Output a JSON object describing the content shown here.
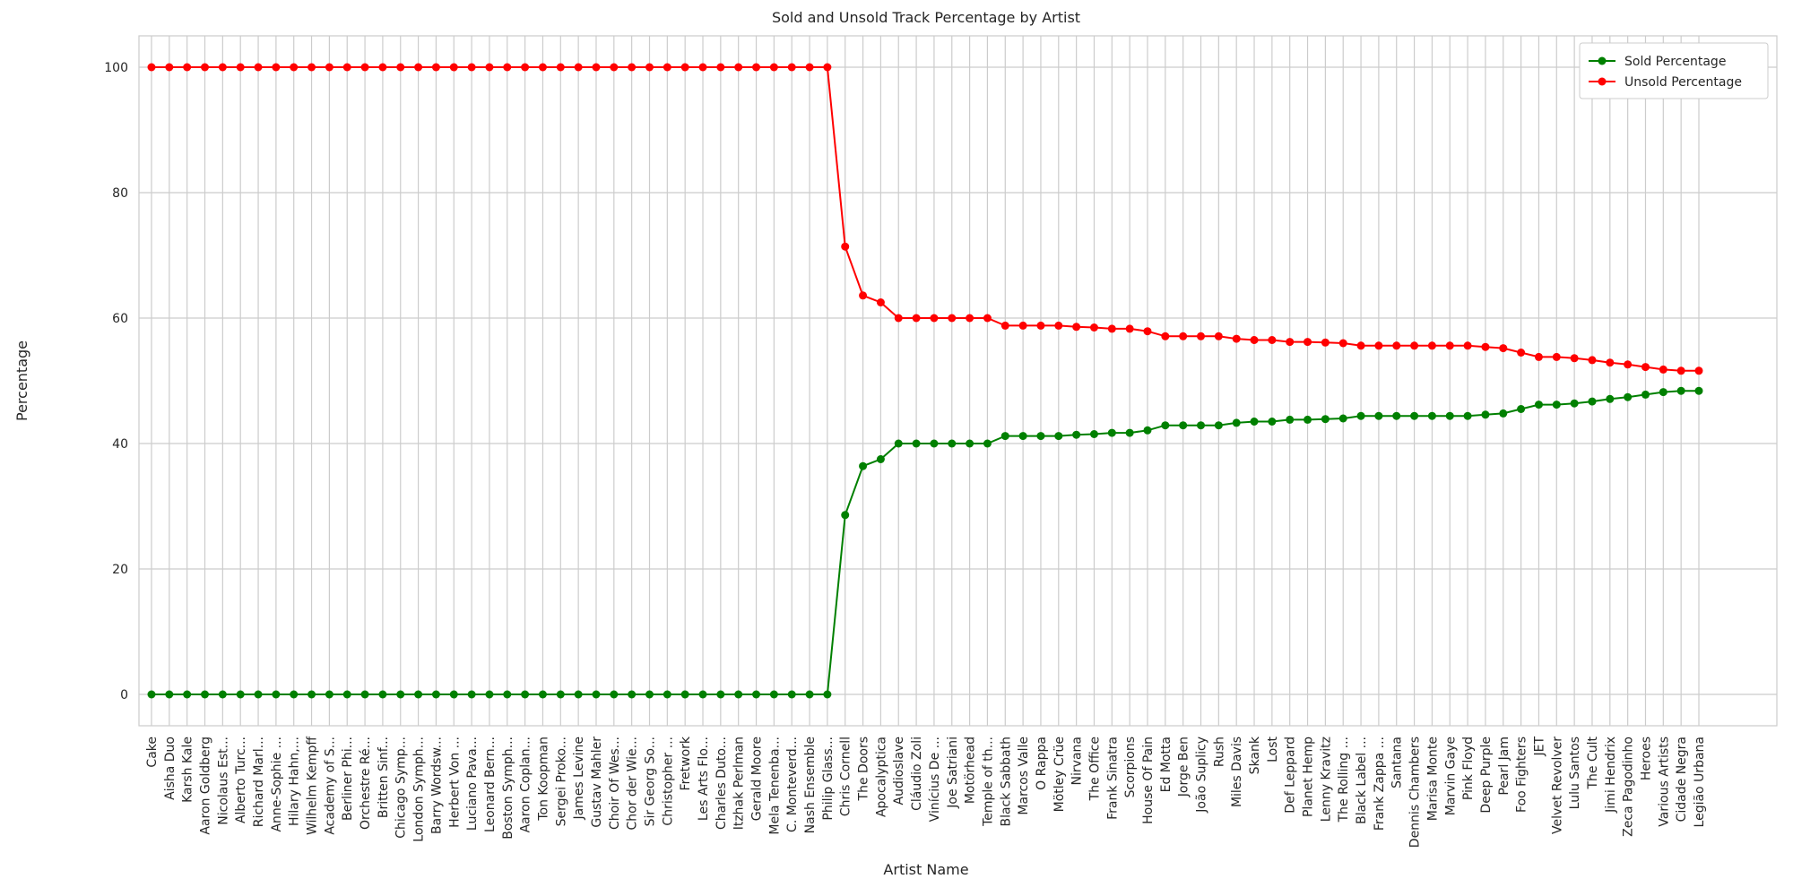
{
  "chart_data": {
    "type": "line",
    "title": "Sold and Unsold Track Percentage by Artist",
    "xlabel": "Artist Name",
    "ylabel": "Percentage",
    "categories": [
      "Cake",
      "Aisha Duo",
      "Karsh Kale",
      "Aaron Goldberg",
      "Nicolaus Est...",
      "Alberto Turc...",
      "Richard Marl...",
      "Anne-Sophie ...",
      "Hilary Hahn,...",
      "Wilhelm Kempff",
      "Academy of S...",
      "Berliner Phi...",
      "Orchestre Ré...",
      "Britten Sinf...",
      "Chicago Symp...",
      "London Symph...",
      "Barry Wordsw...",
      "Herbert Von ...",
      "Luciano Pava...",
      "Leonard Bern...",
      "Boston Symph...",
      "Aaron Coplan...",
      "Ton Koopman",
      "Sergei Proko...",
      "James Levine",
      "Gustav Mahler",
      "Choir Of Wes...",
      "Chor der Wie...",
      "Sir Georg So...",
      "Christopher ...",
      "Fretwork",
      "Les Arts Flo...",
      "Charles Duto...",
      "Itzhak Perlman",
      "Gerald Moore",
      "Mela Tenenba...",
      "C. Monteverd...",
      "Nash Ensemble",
      "Philip Glass...",
      "Chris Cornell",
      "The Doors",
      "Apocalyptica",
      "Audioslave",
      "Cláudio Zoli",
      "Vinícius De ...",
      "Joe Satriani",
      "Motörhead",
      "Temple of th...",
      "Black Sabbath",
      "Marcos Valle",
      "O Rappa",
      "Mötley Crüe",
      "Nirvana",
      "The Office",
      "Frank Sinatra",
      "Scorpions",
      "House Of Pain",
      "Ed Motta",
      "Jorge Ben",
      "João Suplicy",
      "Rush",
      "Miles Davis",
      "Skank",
      "Lost",
      "Def Leppard",
      "Planet Hemp",
      "Lenny Kravitz",
      "The Rolling ...",
      "Black Label ...",
      "Frank Zappa ...",
      "Santana",
      "Dennis Chambers",
      "Marisa Monte",
      "Marvin Gaye",
      "Pink Floyd",
      "Deep Purple",
      "Pearl Jam",
      "Foo Fighters",
      "JET",
      "Velvet Revolver",
      "Lulu Santos",
      "The Cult",
      "Jimi Hendrix",
      "Zeca Pagodinho",
      "Heroes",
      "Various Artists",
      "Cidade Negra",
      "Legião Urbana"
    ],
    "series": [
      {
        "name": "Sold Percentage",
        "color": "#008000",
        "values": [
          0,
          0,
          0,
          0,
          0,
          0,
          0,
          0,
          0,
          0,
          0,
          0,
          0,
          0,
          0,
          0,
          0,
          0,
          0,
          0,
          0,
          0,
          0,
          0,
          0,
          0,
          0,
          0,
          0,
          0,
          0,
          0,
          0,
          0,
          0,
          0,
          0,
          0,
          0,
          28.6,
          36.4,
          37.5,
          40,
          40,
          40,
          40,
          40,
          40,
          41.2,
          41.2,
          41.2,
          41.2,
          41.4,
          41.5,
          41.7,
          41.7,
          42.1,
          42.9,
          42.9,
          42.9,
          42.9,
          43.3,
          43.5,
          43.5,
          43.8,
          43.8,
          43.9,
          44.0,
          44.4,
          44.4,
          44.4,
          44.4,
          44.4,
          44.4,
          44.4,
          44.6,
          44.8,
          45.5,
          46.2,
          46.2,
          46.4,
          46.7,
          47.1,
          47.4,
          47.8,
          48.2,
          48.4,
          48.4
        ]
      },
      {
        "name": "Unsold Percentage",
        "color": "#ff0000",
        "values": [
          100,
          100,
          100,
          100,
          100,
          100,
          100,
          100,
          100,
          100,
          100,
          100,
          100,
          100,
          100,
          100,
          100,
          100,
          100,
          100,
          100,
          100,
          100,
          100,
          100,
          100,
          100,
          100,
          100,
          100,
          100,
          100,
          100,
          100,
          100,
          100,
          100,
          100,
          100,
          71.4,
          63.6,
          62.5,
          60,
          60,
          60,
          60,
          60,
          60,
          58.8,
          58.8,
          58.8,
          58.8,
          58.6,
          58.5,
          58.3,
          58.3,
          57.9,
          57.1,
          57.1,
          57.1,
          57.1,
          56.7,
          56.5,
          56.5,
          56.2,
          56.2,
          56.1,
          56.0,
          55.6,
          55.6,
          55.6,
          55.6,
          55.6,
          55.6,
          55.6,
          55.4,
          55.2,
          54.5,
          53.8,
          53.8,
          53.6,
          53.3,
          52.9,
          52.6,
          52.2,
          51.8,
          51.6,
          51.6
        ]
      }
    ],
    "ylim": [
      -5,
      105
    ],
    "yticks": [
      0,
      20,
      40,
      60,
      80,
      100
    ],
    "grid": true,
    "legend": "upper right"
  }
}
